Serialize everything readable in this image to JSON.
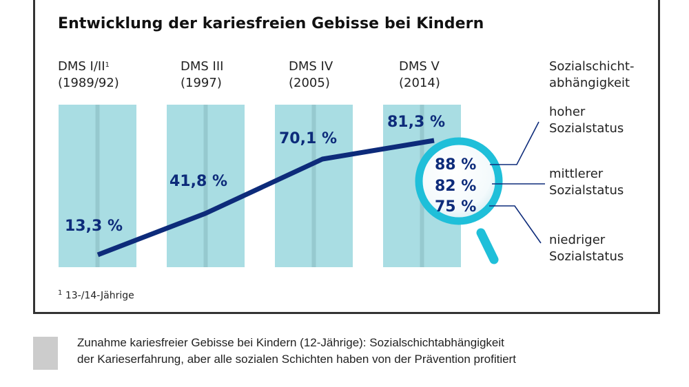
{
  "chart_data": {
    "type": "line",
    "title": "Entwicklung der kariesfreien Gebisse bei Kindern",
    "categories": [
      {
        "name": "DMS I/II",
        "footnote_marker": "1",
        "year": "(1989/92)"
      },
      {
        "name": "DMS III",
        "footnote_marker": "",
        "year": "(1997)"
      },
      {
        "name": "DMS IV",
        "footnote_marker": "",
        "year": "(2005)"
      },
      {
        "name": "DMS V",
        "footnote_marker": "",
        "year": "(2014)"
      }
    ],
    "series": [
      {
        "name": "Kariesfreie Gebisse",
        "values": [
          13.3,
          41.8,
          70.1,
          81.3
        ],
        "labels": [
          "13,3 %",
          "41,8 %",
          "70,1 %",
          "81,3 %"
        ]
      }
    ],
    "ylim": [
      0,
      100
    ],
    "grid": false,
    "social_breakdown": {
      "heading": [
        "Sozialschicht-",
        "abhängigkeit"
      ],
      "items": [
        {
          "value": 88,
          "label": "88 %",
          "status": [
            "hoher",
            "Sozialstatus"
          ]
        },
        {
          "value": 82,
          "label": "82 %",
          "status": [
            "mittlerer",
            "Sozialstatus"
          ]
        },
        {
          "value": 75,
          "label": "75 %",
          "status": [
            "niedriger",
            "Sozialstatus"
          ]
        }
      ]
    },
    "footnote": {
      "marker": "1",
      "text": "13-/14-Jährige"
    },
    "colors": {
      "column": "#a9dde3",
      "column_divider": "#96c9cf",
      "line": "#0d2b7a",
      "magnifier": "#1fbfd9",
      "text": "#222222"
    }
  },
  "caption": {
    "lines": [
      "Zunahme kariesfreier Gebisse bei Kindern (12-Jährige): Sozialschichtabhängigkeit",
      "der Karieserfahrung, aber alle sozialen Schichten haben von der Prävention profitiert"
    ]
  }
}
